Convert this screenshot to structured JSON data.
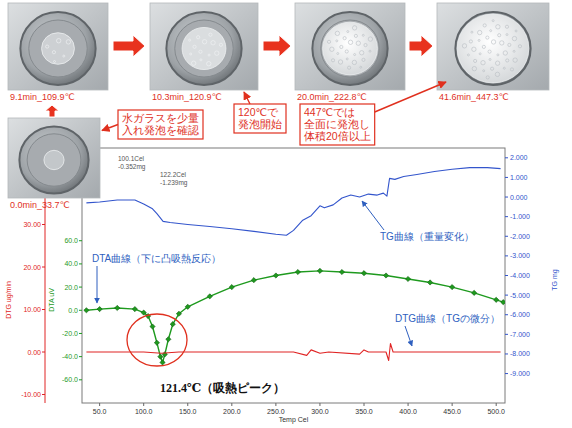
{
  "chart_data": {
    "type": "line",
    "x_label": "Temp Cel",
    "y_label": "DTA uV",
    "y2_label": "TG mg",
    "y3_label": "DTG ug/min",
    "xlim": [
      30,
      510
    ],
    "xticks": [
      {
        "value": 50,
        "label": "50.0"
      },
      {
        "value": 100,
        "label": "100.0"
      },
      {
        "value": 150,
        "label": "150.0"
      },
      {
        "value": 200,
        "label": "200.0"
      },
      {
        "value": 250,
        "label": "250.0"
      },
      {
        "value": 300,
        "label": "300.0"
      },
      {
        "value": 350,
        "label": "350.0"
      },
      {
        "value": 400,
        "label": "400.0"
      },
      {
        "value": 450,
        "label": "450.0"
      },
      {
        "value": 500,
        "label": "500.0"
      }
    ],
    "ylim": [
      -80,
      140
    ],
    "yticks": [
      {
        "value": -60,
        "label": "-60.0"
      },
      {
        "value": -40,
        "label": "-40.0"
      },
      {
        "value": -20,
        "label": "-20.0"
      },
      {
        "value": 0,
        "label": "0.0"
      },
      {
        "value": 20,
        "label": "20.0"
      },
      {
        "value": 40,
        "label": "40.0"
      },
      {
        "value": 60,
        "label": "60.0"
      }
    ],
    "y2lim": [
      -10.5,
      2.5
    ],
    "y2ticks": [
      {
        "value": 2,
        "label": "2.000"
      },
      {
        "value": 1,
        "label": "1.000"
      },
      {
        "value": 0,
        "label": "0.000"
      },
      {
        "value": -1,
        "label": "-1.000"
      },
      {
        "value": -2,
        "label": "-2.000"
      },
      {
        "value": -3,
        "label": "-3.000"
      },
      {
        "value": -4,
        "label": "-4.000"
      },
      {
        "value": -5,
        "label": "-5.000"
      },
      {
        "value": -6,
        "label": "-6.000"
      },
      {
        "value": -7,
        "label": "-7.000"
      },
      {
        "value": -8,
        "label": "-8.000"
      },
      {
        "value": -9,
        "label": "-9.000"
      }
    ],
    "y3lim": [
      -12,
      48
    ],
    "y3ticks": [
      {
        "value": -10,
        "label": "-10.00"
      },
      {
        "value": 0,
        "label": "0.00"
      },
      {
        "value": 10,
        "label": "10.00"
      },
      {
        "value": 20,
        "label": "20.00"
      },
      {
        "value": 30,
        "label": "30.00"
      }
    ],
    "grid": false,
    "series": [
      {
        "name": "TG曲線（重量変化）",
        "color": "#3355cc",
        "axis": "y2",
        "line_style": "solid",
        "x": [
          35,
          50,
          70,
          90,
          100,
          110,
          115,
          122,
          130,
          150,
          175,
          200,
          225,
          250,
          262,
          270,
          280,
          290,
          300,
          305,
          315,
          325,
          335,
          345,
          355,
          365,
          372,
          376,
          379,
          385,
          395,
          410,
          430,
          450,
          470,
          490,
          505
        ],
        "values": [
          -0.3,
          -0.25,
          -0.15,
          -0.15,
          -0.35,
          -0.6,
          -0.85,
          -1.24,
          -1.3,
          -1.4,
          -1.5,
          -1.62,
          -1.75,
          -1.9,
          -1.95,
          -1.7,
          -1.2,
          -0.95,
          -0.45,
          -0.55,
          -0.4,
          -0.05,
          0.1,
          0,
          0.15,
          0.1,
          0.2,
          0.05,
          0.95,
          0.9,
          1.05,
          1.15,
          1.3,
          1.42,
          1.5,
          1.5,
          1.45
        ]
      },
      {
        "name": "DTA曲線（下に凸吸熱反応）",
        "color": "#1e9a1e",
        "axis": "y",
        "line_style": "solid",
        "marker": "diamond",
        "x": [
          35,
          50,
          70,
          90,
          100,
          105,
          110,
          115,
          119,
          121.4,
          124,
          128,
          133,
          140,
          150,
          175,
          200,
          225,
          250,
          275,
          300,
          325,
          350,
          375,
          400,
          425,
          450,
          475,
          500,
          508
        ],
        "values": [
          0,
          1,
          2,
          1,
          -2,
          -5,
          -14,
          -28,
          -40,
          -45,
          -38,
          -25,
          -12,
          -3,
          3,
          12,
          20,
          26,
          30,
          33,
          34,
          33,
          32,
          30,
          27,
          24,
          20,
          15,
          9,
          7
        ]
      },
      {
        "name": "DTG曲線（TGの微分）",
        "color": "#e02424",
        "axis": "y3",
        "line_style": "solid",
        "x": [
          35,
          100,
          120,
          140,
          270,
          285,
          290,
          300,
          310,
          345,
          350,
          355,
          375,
          378,
          380,
          383,
          420,
          505
        ],
        "values": [
          0,
          0,
          -0.3,
          0,
          0,
          -0.8,
          0.5,
          -0.3,
          0,
          -0.5,
          0.5,
          0,
          0,
          -2,
          2,
          0,
          0,
          0
        ]
      }
    ],
    "annotations": [
      {
        "text": "121.4℃（吸熱ピーク）"
      },
      {
        "lines": [
          "100.1Cel",
          "-0.352mg"
        ]
      },
      {
        "lines": [
          "122.2Cel",
          "-1.239mg"
        ]
      }
    ]
  },
  "photos": [
    {
      "label": "0.0min_33.7℃"
    },
    {
      "label": "9.1min_109.9℃"
    },
    {
      "label": "10.3min_120.9℃"
    },
    {
      "label": "20.0min_222.8℃"
    },
    {
      "label": "41.6min_447.3℃"
    }
  ],
  "callouts": [
    {
      "lines": [
        "水ガラスを少量",
        "入れ発泡を確認"
      ]
    },
    {
      "lines": [
        "120℃で",
        "発泡開始"
      ]
    },
    {
      "lines": [
        "447℃では",
        "全面に発泡し",
        "体積20倍以上"
      ]
    }
  ]
}
